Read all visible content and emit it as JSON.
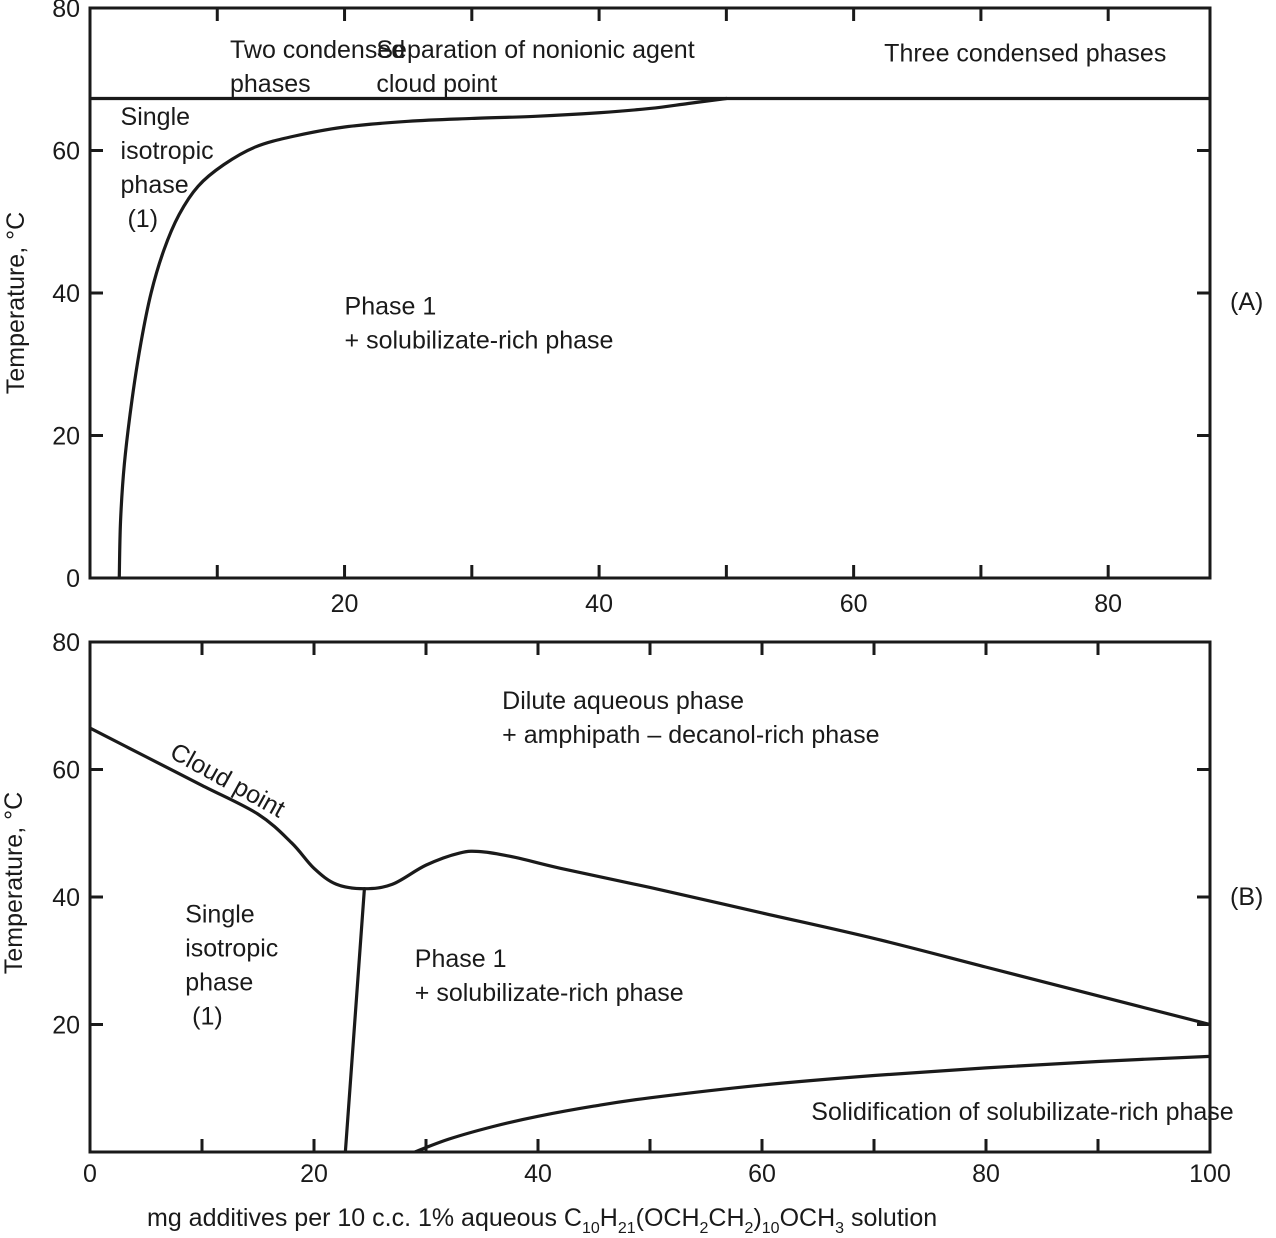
{
  "chart_data": [
    {
      "id": "A",
      "type": "line",
      "panel_tag": "(A)",
      "ylabel": "Temperature, °C",
      "xlabel": "",
      "xlim": [
        0,
        88
      ],
      "ylim": [
        0,
        80
      ],
      "x_ticks": [
        20,
        40,
        60,
        80
      ],
      "y_ticks": [
        0,
        20,
        40,
        60,
        80
      ],
      "x_minor_ticks": [
        10,
        30,
        50,
        70
      ],
      "y_minor_ticks": [],
      "series": [
        {
          "name": "phase boundary",
          "points": [
            [
              2.3,
              0
            ],
            [
              2.4,
              8
            ],
            [
              2.7,
              16
            ],
            [
              3.3,
              25
            ],
            [
              4.0,
              33
            ],
            [
              4.8,
              40
            ],
            [
              5.8,
              46
            ],
            [
              7.0,
              51
            ],
            [
              8.5,
              55
            ],
            [
              10.5,
              58
            ],
            [
              13.0,
              60.5
            ],
            [
              16.0,
              62
            ],
            [
              20.0,
              63.3
            ],
            [
              25.0,
              64.1
            ],
            [
              30.0,
              64.5
            ],
            [
              35.0,
              64.8
            ],
            [
              40.0,
              65.3
            ],
            [
              44.0,
              65.9
            ],
            [
              47.0,
              66.6
            ],
            [
              50.0,
              67.3
            ]
          ]
        },
        {
          "name": "cloud point line",
          "points": [
            [
              0,
              67.3
            ],
            [
              88,
              67.3
            ]
          ]
        }
      ],
      "regions": [
        {
          "lines": [
            "Two condensed",
            "phases"
          ],
          "x": 11,
          "y": 73
        },
        {
          "lines": [
            "Separation of nonionic agent",
            "cloud point"
          ],
          "x": 22.5,
          "y": 73
        },
        {
          "lines": [
            "Three condensed phases"
          ],
          "x": 62.4,
          "y": 72.5
        },
        {
          "lines": [
            "Single",
            "isotropic",
            "phase",
            " (1)"
          ],
          "x": 2.4,
          "y": 63.6
        },
        {
          "lines": [
            "Phase 1",
            "+ solubilizate-rich phase"
          ],
          "x": 20,
          "y": 37
        }
      ]
    },
    {
      "id": "B",
      "type": "line",
      "panel_tag": "(B)",
      "ylabel": "Temperature, °C",
      "xlabel_parts": [
        {
          "t": "mg additives per 10 c.c. 1% aqueous C",
          "sub": false
        },
        {
          "t": "10",
          "sub": true
        },
        {
          "t": "H",
          "sub": false
        },
        {
          "t": "21",
          "sub": true
        },
        {
          "t": "(OCH",
          "sub": false
        },
        {
          "t": "2",
          "sub": true
        },
        {
          "t": "CH",
          "sub": false
        },
        {
          "t": "2",
          "sub": true
        },
        {
          "t": ")",
          "sub": false
        },
        {
          "t": "10",
          "sub": true
        },
        {
          "t": "OCH",
          "sub": false
        },
        {
          "t": "3",
          "sub": true
        },
        {
          "t": " solution",
          "sub": false
        }
      ],
      "xlim": [
        0,
        100
      ],
      "ylim": [
        0,
        80
      ],
      "x_ticks": [
        0,
        20,
        40,
        60,
        80,
        100
      ],
      "y_ticks": [
        20,
        40,
        60,
        80
      ],
      "x_minor_ticks": [
        10,
        30,
        50,
        70,
        90
      ],
      "y_minor_ticks": [],
      "series": [
        {
          "name": "Cloud point",
          "points": [
            [
              0,
              66.5
            ],
            [
              5,
              62
            ],
            [
              10,
              57.5
            ],
            [
              15,
              53
            ],
            [
              18,
              48.5
            ],
            [
              20,
              44.5
            ],
            [
              22,
              42
            ],
            [
              24.5,
              41.3
            ],
            [
              27,
              42
            ],
            [
              30,
              45
            ],
            [
              33,
              46.9
            ],
            [
              35,
              47.1
            ],
            [
              38,
              46.2
            ],
            [
              42,
              44.5
            ],
            [
              50,
              41.5
            ],
            [
              60,
              37.5
            ],
            [
              70,
              33.5
            ],
            [
              80,
              29
            ],
            [
              90,
              24.5
            ],
            [
              100,
              20
            ]
          ]
        },
        {
          "name": "solubility boundary",
          "points": [
            [
              22.8,
              0
            ],
            [
              24.5,
              41.3
            ]
          ]
        },
        {
          "name": "solidification boundary",
          "points": [
            [
              29,
              0
            ],
            [
              32,
              2
            ],
            [
              36,
              4
            ],
            [
              40,
              5.6
            ],
            [
              45,
              7.2
            ],
            [
              50,
              8.5
            ],
            [
              60,
              10.5
            ],
            [
              70,
              12
            ],
            [
              80,
              13.2
            ],
            [
              90,
              14.2
            ],
            [
              100,
              15
            ]
          ]
        }
      ],
      "regions": [
        {
          "lines": [
            "Dilute aqueous phase",
            "+ amphipath – decanol-rich phase"
          ],
          "x": 36.8,
          "y": 69.5
        },
        {
          "lines": [
            "Single",
            "isotropic",
            "phase",
            " (1)"
          ],
          "x": 8.5,
          "y": 36
        },
        {
          "lines": [
            "Phase 1",
            "+ solubilizate-rich phase"
          ],
          "x": 29,
          "y": 29
        },
        {
          "lines": [
            "Solidification of solubilizate-rich phase"
          ],
          "x": 64.4,
          "y": 5
        }
      ],
      "annotations": [
        {
          "text": "Cloud point",
          "x": 7,
          "y": 62,
          "rotate_deg": 29
        }
      ]
    }
  ]
}
